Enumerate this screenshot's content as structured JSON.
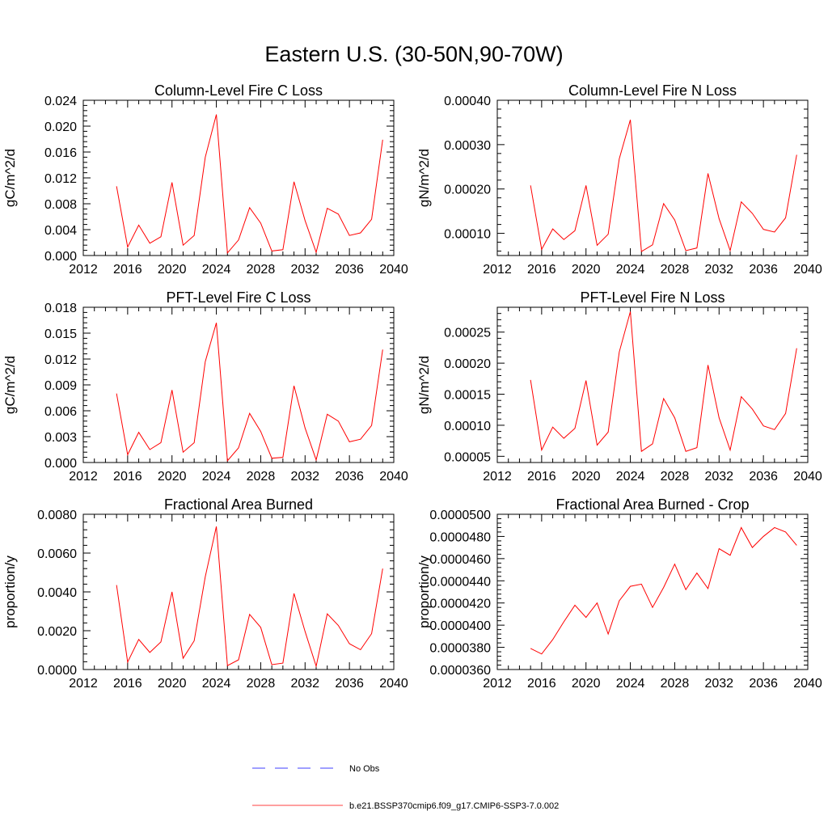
{
  "suptitle": "Eastern U.S. (30-50N,90-70W)",
  "colors": {
    "model": "#ff0000",
    "obs": "#0000ff",
    "axis": "#000000"
  },
  "legend": [
    {
      "label": "No Obs",
      "style": "dashed",
      "color": "#0000ff"
    },
    {
      "label": "b.e21.BSSP370cmip6.f09_g17.CMIP6-SSP3-7.0.002",
      "style": "solid",
      "color": "#ff0000"
    }
  ],
  "chart_data": [
    {
      "type": "line",
      "title": "Column-Level Fire C Loss",
      "ylabel": "gC/m^2/d",
      "xlim": [
        2012,
        2040
      ],
      "xticks": [
        2012,
        2016,
        2020,
        2024,
        2028,
        2032,
        2036,
        2040
      ],
      "ylim": [
        0,
        0.024
      ],
      "yticks": [
        0,
        0.004,
        0.008,
        0.012,
        0.016,
        0.02,
        0.024
      ],
      "yticklabels": [
        "0.000",
        "0.004",
        "0.008",
        "0.012",
        "0.016",
        "0.020",
        "0.024"
      ],
      "x": [
        2015,
        2016,
        2017,
        2018,
        2019,
        2020,
        2021,
        2022,
        2023,
        2024,
        2025,
        2026,
        2027,
        2028,
        2029,
        2030,
        2031,
        2032,
        2033,
        2034,
        2035,
        2036,
        2037,
        2038,
        2039
      ],
      "series": [
        {
          "name": "b.e21.BSSP370cmip6.f09_g17.CMIP6-SSP3-7.0.002",
          "values": [
            0.0107,
            0.0013,
            0.0047,
            0.0019,
            0.0029,
            0.0113,
            0.0016,
            0.0031,
            0.0152,
            0.0218,
            0.0004,
            0.0024,
            0.0074,
            0.005,
            0.0007,
            0.0009,
            0.0114,
            0.0054,
            0.0005,
            0.0073,
            0.0064,
            0.0031,
            0.0035,
            0.0056,
            0.0179
          ]
        }
      ]
    },
    {
      "type": "line",
      "title": "Column-Level Fire N Loss",
      "ylabel": "gN/m^2/d",
      "xlim": [
        2012,
        2040
      ],
      "xticks": [
        2012,
        2016,
        2020,
        2024,
        2028,
        2032,
        2036,
        2040
      ],
      "ylim": [
        5e-05,
        0.0004
      ],
      "yticks": [
        0.0001,
        0.0002,
        0.0003,
        0.0004
      ],
      "yticklabels": [
        "0.00010",
        "0.00020",
        "0.00030",
        "0.00040"
      ],
      "x": [
        2015,
        2016,
        2017,
        2018,
        2019,
        2020,
        2021,
        2022,
        2023,
        2024,
        2025,
        2026,
        2027,
        2028,
        2029,
        2030,
        2031,
        2032,
        2033,
        2034,
        2035,
        2036,
        2037,
        2038,
        2039
      ],
      "series": [
        {
          "name": "b.e21.BSSP370cmip6.f09_g17.CMIP6-SSP3-7.0.002",
          "values": [
            0.000208,
            6.4e-05,
            0.00011,
            8.6e-05,
            0.000106,
            0.000208,
            7.3e-05,
            9.8e-05,
            0.000268,
            0.000356,
            5.9e-05,
            7.4e-05,
            0.000167,
            0.00013,
            6.1e-05,
            6.7e-05,
            0.000235,
            0.000133,
            6.1e-05,
            0.000171,
            0.000145,
            0.000109,
            0.000103,
            0.000135,
            0.000277
          ]
        }
      ]
    },
    {
      "type": "line",
      "title": "PFT-Level Fire C Loss",
      "ylabel": "gC/m^2/d",
      "xlim": [
        2012,
        2040
      ],
      "xticks": [
        2012,
        2016,
        2020,
        2024,
        2028,
        2032,
        2036,
        2040
      ],
      "ylim": [
        0,
        0.018
      ],
      "yticks": [
        0,
        0.003,
        0.006,
        0.009,
        0.012,
        0.015,
        0.018
      ],
      "yticklabels": [
        "0.000",
        "0.003",
        "0.006",
        "0.009",
        "0.012",
        "0.015",
        "0.018"
      ],
      "x": [
        2015,
        2016,
        2017,
        2018,
        2019,
        2020,
        2021,
        2022,
        2023,
        2024,
        2025,
        2026,
        2027,
        2028,
        2029,
        2030,
        2031,
        2032,
        2033,
        2034,
        2035,
        2036,
        2037,
        2038,
        2039
      ],
      "series": [
        {
          "name": "b.e21.BSSP370cmip6.f09_g17.CMIP6-SSP3-7.0.002",
          "values": [
            0.008,
            0.0009,
            0.0035,
            0.0015,
            0.0023,
            0.0084,
            0.0012,
            0.0023,
            0.0117,
            0.0162,
            0.0002,
            0.0017,
            0.0057,
            0.0036,
            0.0005,
            0.0006,
            0.0089,
            0.004,
            0.0003,
            0.0056,
            0.0048,
            0.0024,
            0.0027,
            0.0043,
            0.0131
          ]
        }
      ]
    },
    {
      "type": "line",
      "title": "PFT-Level Fire N Loss",
      "ylabel": "gN/m^2/d",
      "xlim": [
        2012,
        2040
      ],
      "xticks": [
        2012,
        2016,
        2020,
        2024,
        2028,
        2032,
        2036,
        2040
      ],
      "ylim": [
        4e-05,
        0.00029
      ],
      "yticks": [
        5e-05,
        0.0001,
        0.00015,
        0.0002,
        0.00025
      ],
      "yticklabels": [
        "0.00005",
        "0.00010",
        "0.00015",
        "0.00020",
        "0.00025"
      ],
      "x": [
        2015,
        2016,
        2017,
        2018,
        2019,
        2020,
        2021,
        2022,
        2023,
        2024,
        2025,
        2026,
        2027,
        2028,
        2029,
        2030,
        2031,
        2032,
        2033,
        2034,
        2035,
        2036,
        2037,
        2038,
        2039
      ],
      "series": [
        {
          "name": "b.e21.BSSP370cmip6.f09_g17.CMIP6-SSP3-7.0.002",
          "values": [
            0.000173,
            6e-05,
            9.7e-05,
            7.9e-05,
            9.5e-05,
            0.000172,
            6.8e-05,
            8.9e-05,
            0.000218,
            0.000283,
            5.8e-05,
            7e-05,
            0.000143,
            0.000112,
            5.8e-05,
            6.4e-05,
            0.000197,
            0.000112,
            6e-05,
            0.000146,
            0.000126,
            9.9e-05,
            9.3e-05,
            0.000119,
            0.000224
          ]
        }
      ]
    },
    {
      "type": "line",
      "title": "Fractional Area Burned",
      "ylabel": "proportion/y",
      "xlim": [
        2012,
        2040
      ],
      "xticks": [
        2012,
        2016,
        2020,
        2024,
        2028,
        2032,
        2036,
        2040
      ],
      "ylim": [
        0,
        0.008
      ],
      "yticks": [
        0,
        0.002,
        0.004,
        0.006,
        0.008
      ],
      "yticklabels": [
        "0.0000",
        "0.0020",
        "0.0040",
        "0.0060",
        "0.0080"
      ],
      "x": [
        2015,
        2016,
        2017,
        2018,
        2019,
        2020,
        2021,
        2022,
        2023,
        2024,
        2025,
        2026,
        2027,
        2028,
        2029,
        2030,
        2031,
        2032,
        2033,
        2034,
        2035,
        2036,
        2037,
        2038,
        2039
      ],
      "series": [
        {
          "name": "b.e21.BSSP370cmip6.f09_g17.CMIP6-SSP3-7.0.002",
          "values": [
            0.00435,
            0.00038,
            0.00155,
            0.00088,
            0.00142,
            0.004,
            0.00058,
            0.00148,
            0.00478,
            0.00737,
            0.0002,
            0.0005,
            0.00284,
            0.00217,
            0.00025,
            0.00033,
            0.00392,
            0.00196,
            0.00017,
            0.00287,
            0.00227,
            0.00133,
            0.00102,
            0.00185,
            0.0052
          ]
        }
      ]
    },
    {
      "type": "line",
      "title": "Fractional Area Burned - Crop",
      "ylabel": "proportion/y",
      "xlim": [
        2012,
        2040
      ],
      "xticks": [
        2012,
        2016,
        2020,
        2024,
        2028,
        2032,
        2036,
        2040
      ],
      "ylim": [
        3.6e-05,
        5e-05
      ],
      "yticks": [
        3.6e-05,
        3.8e-05,
        4e-05,
        4.2e-05,
        4.4e-05,
        4.6e-05,
        4.8e-05,
        5e-05
      ],
      "yticklabels": [
        "0.0000360",
        "0.0000380",
        "0.0000400",
        "0.0000420",
        "0.0000440",
        "0.0000460",
        "0.0000480",
        "0.0000500"
      ],
      "x": [
        2015,
        2016,
        2017,
        2018,
        2019,
        2020,
        2021,
        2022,
        2023,
        2024,
        2025,
        2026,
        2027,
        2028,
        2029,
        2030,
        2031,
        2032,
        2033,
        2034,
        2035,
        2036,
        2037,
        2038,
        2039
      ],
      "series": [
        {
          "name": "b.e21.BSSP370cmip6.f09_g17.CMIP6-SSP3-7.0.002",
          "values": [
            3.79e-05,
            3.74e-05,
            3.87e-05,
            4.03e-05,
            4.18e-05,
            4.07e-05,
            4.2e-05,
            3.92e-05,
            4.22e-05,
            4.35e-05,
            4.37e-05,
            4.16e-05,
            4.34e-05,
            4.55e-05,
            4.32e-05,
            4.47e-05,
            4.33e-05,
            4.69e-05,
            4.63e-05,
            4.88e-05,
            4.7e-05,
            4.8e-05,
            4.88e-05,
            4.84e-05,
            4.72e-05
          ]
        }
      ]
    }
  ]
}
